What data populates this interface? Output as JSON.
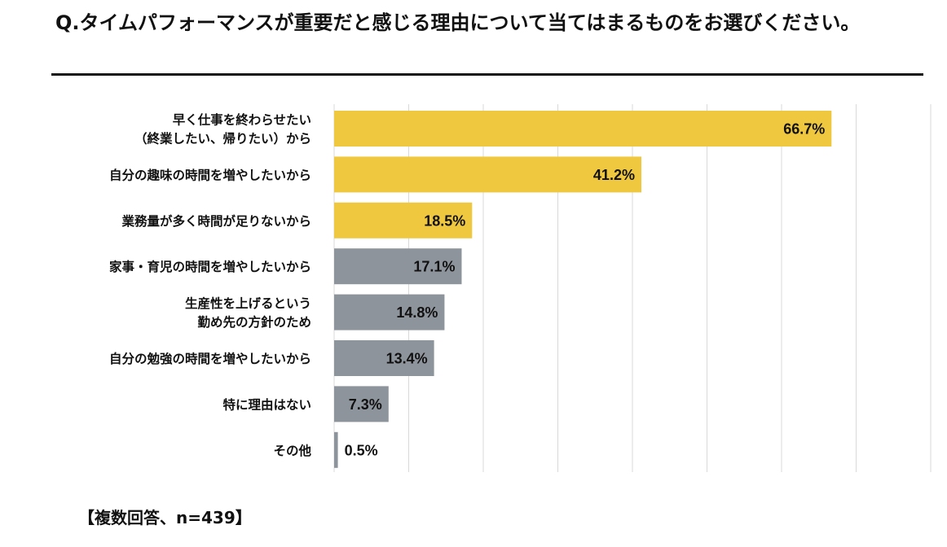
{
  "title": "Q.タイムパフォーマンスが重要だと感じる理由について当てはまるものをお選びください。",
  "footnote": "【複数回答、n=439】",
  "colors": {
    "highlight": "#EFC840",
    "other": "#8E949B",
    "grid": "#D9D9D9",
    "text": "#111111"
  },
  "chart_data": {
    "type": "bar",
    "orientation": "horizontal",
    "title": "Q.タイムパフォーマンスが重要だと感じる理由について当てはまるものをお選びください。",
    "xlim": [
      0,
      80
    ],
    "grid": true,
    "categories": [
      [
        "早く仕事を終わらせたい",
        "（終業したい、帰りたい）から"
      ],
      [
        "自分の趣味の時間を増やしたいから"
      ],
      [
        "業務量が多く時間が足りないから"
      ],
      [
        "家事・育児の時間を増やしたいから"
      ],
      [
        "生産性を上げるという",
        "勤め先の方針のため"
      ],
      [
        "自分の勉強の時間を増やしたいから"
      ],
      [
        "特に理由はない"
      ],
      [
        "その他"
      ]
    ],
    "values": [
      66.7,
      41.2,
      18.5,
      17.1,
      14.8,
      13.4,
      7.3,
      0.5
    ],
    "value_labels": [
      "66.7%",
      "41.2%",
      "18.5%",
      "17.1%",
      "14.8%",
      "13.4%",
      "7.3%",
      "0.5%"
    ],
    "highlight_top": 3
  }
}
